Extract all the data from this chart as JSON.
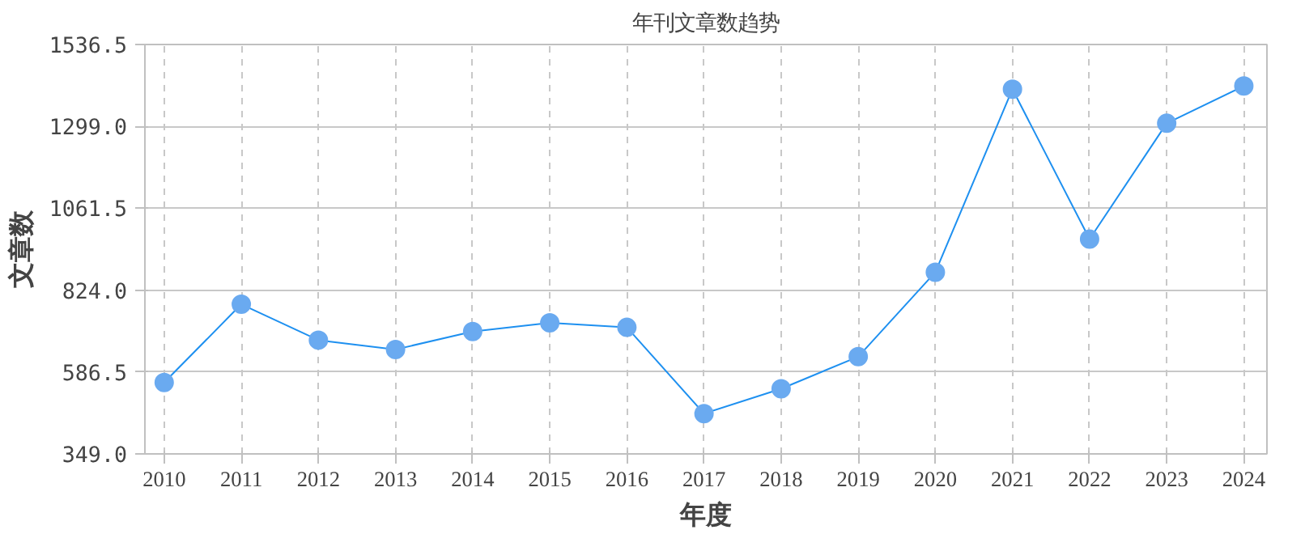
{
  "chart_data": {
    "type": "line",
    "title": "年刊文章数趋势",
    "xlabel": "年度",
    "ylabel": "文章数",
    "categories": [
      "2010",
      "2011",
      "2012",
      "2013",
      "2014",
      "2015",
      "2016",
      "2017",
      "2018",
      "2019",
      "2020",
      "2021",
      "2022",
      "2023",
      "2024"
    ],
    "series": [
      {
        "color": "#1e90f0",
        "values": [
          556,
          783,
          679,
          652,
          704,
          729,
          716,
          466,
          538,
          631,
          876,
          1407,
          972,
          1308,
          1416
        ]
      }
    ],
    "ylim": [
      349.0,
      1536.5
    ],
    "yticks": [
      {
        "value": 349.0,
        "label": "349.0"
      },
      {
        "value": 586.5,
        "label": "586.5"
      },
      {
        "value": 824.0,
        "label": "824.0"
      },
      {
        "value": 1061.5,
        "label": "1061.5"
      },
      {
        "value": 1299.0,
        "label": "1299.0"
      },
      {
        "value": 1536.5,
        "label": "1536.5"
      }
    ],
    "grid": true,
    "marker": "circle",
    "line_style": "solid"
  }
}
